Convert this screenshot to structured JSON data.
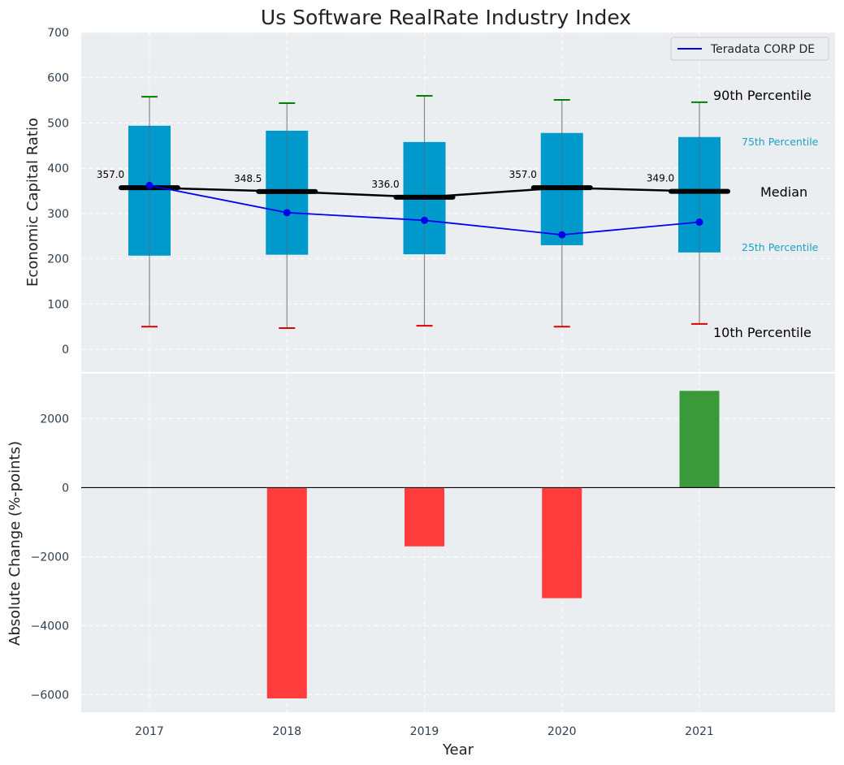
{
  "title": "Us Software RealRate Industry Index",
  "colors": {
    "panel_bg": "#eaeef0",
    "box": "#0099cc",
    "median": "#000000",
    "company": "#0000ee",
    "p90": "#008000",
    "p10": "#dd0000",
    "bar_pos": "#3a9a3a",
    "bar_neg": "#ff3b3b",
    "annotation_small": "#1a9fc6"
  },
  "chart_data": [
    {
      "type": "box",
      "ylabel": "Economic Capital Ratio",
      "ylim": [
        -50,
        700
      ],
      "yticks": [
        0,
        100,
        200,
        300,
        400,
        500,
        600,
        700
      ],
      "categories": [
        "2017",
        "2018",
        "2019",
        "2020",
        "2021"
      ],
      "p10": [
        50,
        47,
        52,
        50,
        56
      ],
      "p25": [
        207,
        209,
        210,
        230,
        214
      ],
      "median": [
        357.0,
        348.5,
        336.0,
        357.0,
        349.0
      ],
      "median_labels": [
        "357.0",
        "348.5",
        "336.0",
        "357.0",
        "349.0"
      ],
      "p75": [
        494,
        483,
        458,
        478,
        469
      ],
      "p90": [
        558,
        544,
        560,
        551,
        546
      ],
      "company_series": {
        "name": "Teradata CORP DE",
        "values": [
          362,
          302,
          285,
          253,
          281
        ]
      },
      "annotations": {
        "p90": "90th Percentile",
        "p75": "75th Percentile",
        "median": "Median",
        "p25": "25th Percentile",
        "p10": "10th Percentile"
      },
      "legend": "top-right",
      "grid": true
    },
    {
      "type": "bar",
      "ylabel": "Absolute Change (%-points)",
      "xlabel": "Year",
      "ylim": [
        -6500,
        3300
      ],
      "yticks": [
        -6000,
        -4000,
        -2000,
        0,
        2000
      ],
      "ytick_labels": [
        "−6000",
        "−4000",
        "−2000",
        "0",
        "2000"
      ],
      "categories": [
        "2017",
        "2018",
        "2019",
        "2020",
        "2021"
      ],
      "values": [
        0,
        -6100,
        -1700,
        -3200,
        2800
      ],
      "grid": true
    }
  ]
}
